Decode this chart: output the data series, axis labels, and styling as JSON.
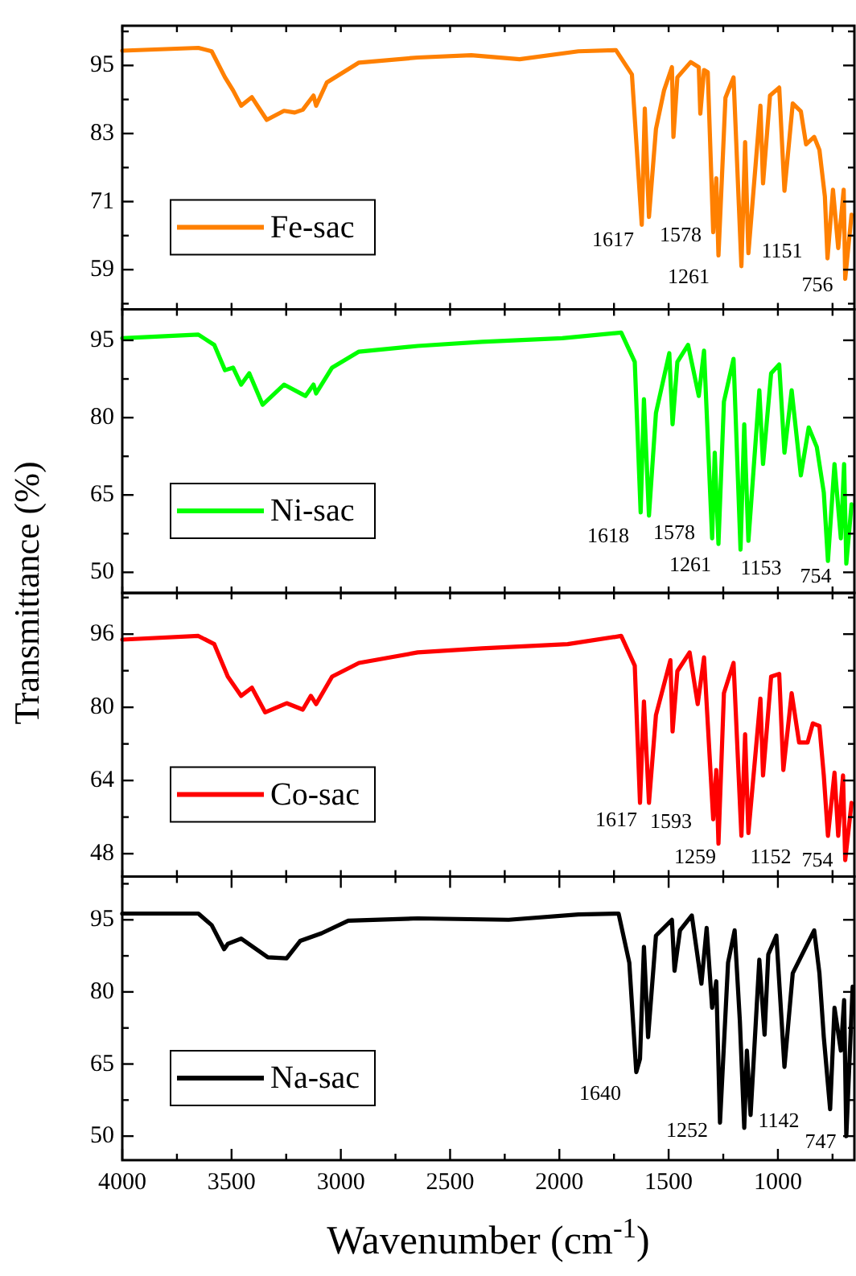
{
  "chart_data": [
    {
      "type": "line",
      "ylabel": "Transmittance (%)",
      "tick_labels": "y",
      "legend": "bottom left",
      "xlim": [
        4000,
        650
      ],
      "xticks": [
        {
          "value": 4000,
          "label": null
        },
        {
          "value": 3750,
          "label": null
        },
        {
          "value": 3500,
          "label": null
        },
        {
          "value": 3250,
          "label": null
        },
        {
          "value": 3000,
          "label": null
        },
        {
          "value": 2750,
          "label": null
        },
        {
          "value": 2500,
          "label": null
        },
        {
          "value": 2250,
          "label": null
        },
        {
          "value": 2000,
          "label": null
        },
        {
          "value": 1750,
          "label": null
        },
        {
          "value": 1500,
          "label": null
        },
        {
          "value": 1250,
          "label": null
        },
        {
          "value": 1000,
          "label": null
        },
        {
          "value": 750,
          "label": null
        }
      ],
      "ylim": [
        52,
        102
      ],
      "yticks": [
        {
          "value": 53,
          "label": null
        },
        59,
        {
          "value": 65,
          "label": null
        },
        71,
        {
          "value": 77,
          "label": null
        },
        83,
        {
          "value": 89,
          "label": null
        },
        95,
        {
          "value": 101,
          "label": null
        }
      ],
      "x": [
        4000,
        3652,
        3591,
        3530,
        3493,
        3456,
        3407,
        3339,
        3260,
        3211,
        3174,
        3125,
        3113,
        3064,
        2917,
        2648,
        2403,
        2182,
        1913,
        1741,
        1668,
        1623,
        1609,
        1590,
        1558,
        1521,
        1485,
        1478,
        1460,
        1399,
        1362,
        1355,
        1338,
        1321,
        1296,
        1282,
        1272,
        1240,
        1203,
        1167,
        1150,
        1135,
        1080,
        1068,
        1036,
        994,
        970,
        932,
        895,
        871,
        834,
        810,
        785,
        773,
        748,
        724,
        699,
        692,
        663
      ],
      "series": [
        {
          "name": "Fe-sac",
          "color": "#ff8000",
          "values": [
            97.6,
            98.1,
            97.5,
            92.9,
            90.6,
            87.9,
            89.4,
            85.4,
            87,
            86.7,
            87.2,
            89.7,
            87.9,
            92,
            95.5,
            96.4,
            96.8,
            96.1,
            97.5,
            97.7,
            93.4,
            66.9,
            87.4,
            68.3,
            83.8,
            90.6,
            94.7,
            82.4,
            92.9,
            95.6,
            94.7,
            86.5,
            94.2,
            93.8,
            65.6,
            75.1,
            61.5,
            89.3,
            92.9,
            59.6,
            81.5,
            61.9,
            87.9,
            74.2,
            89.7,
            91.1,
            72.9,
            88.3,
            86.9,
            81.1,
            82.4,
            80.1,
            71.9,
            61,
            73.1,
            62.8,
            73.1,
            57.4,
            68.7
          ]
        }
      ],
      "annotations": [
        "1617",
        "1578",
        "1261",
        "1151",
        "756"
      ]
    },
    {
      "type": "line",
      "tick_labels": "y",
      "legend": "bottom left",
      "xlim": [
        4000,
        650
      ],
      "xticks": [
        {
          "value": 4000,
          "label": null
        },
        {
          "value": 3750,
          "label": null
        },
        {
          "value": 3500,
          "label": null
        },
        {
          "value": 3250,
          "label": null
        },
        {
          "value": 3000,
          "label": null
        },
        {
          "value": 2750,
          "label": null
        },
        {
          "value": 2500,
          "label": null
        },
        {
          "value": 2250,
          "label": null
        },
        {
          "value": 2000,
          "label": null
        },
        {
          "value": 1750,
          "label": null
        },
        {
          "value": 1500,
          "label": null
        },
        {
          "value": 1250,
          "label": null
        },
        {
          "value": 1000,
          "label": null
        },
        {
          "value": 750,
          "label": null
        }
      ],
      "ylim": [
        46,
        101
      ],
      "yticks": [
        50,
        {
          "value": 57.5,
          "label": null
        },
        65,
        {
          "value": 72.5,
          "label": null
        },
        80,
        {
          "value": 87.5,
          "label": null
        },
        95
      ],
      "x": [
        4000,
        3652,
        3579,
        3530,
        3493,
        3456,
        3419,
        3358,
        3260,
        3162,
        3125,
        3113,
        3040,
        2917,
        2648,
        2354,
        1987,
        1717,
        1655,
        1628,
        1613,
        1590,
        1558,
        1497,
        1482,
        1460,
        1411,
        1362,
        1338,
        1301,
        1289,
        1272,
        1247,
        1203,
        1171,
        1154,
        1135,
        1085,
        1068,
        1031,
        994,
        970,
        937,
        895,
        859,
        822,
        790,
        771,
        741,
        712,
        697,
        687,
        663
      ],
      "series": [
        {
          "name": "Ni-sac",
          "color": "#00ff00",
          "values": [
            95.4,
            96.1,
            94.1,
            89.2,
            89.7,
            86.4,
            88.6,
            82.5,
            86.4,
            84.2,
            86.4,
            84.7,
            89.7,
            92.8,
            93.9,
            94.7,
            95.4,
            96.5,
            90.8,
            61.6,
            83.6,
            61,
            80.9,
            92.5,
            78.7,
            90.8,
            94.1,
            84.2,
            93,
            56.6,
            73.2,
            55.5,
            83.1,
            91.4,
            54.4,
            78.7,
            56.1,
            85.3,
            71,
            88.6,
            90.3,
            73.2,
            85.3,
            68.8,
            78.1,
            74.3,
            65.5,
            52.2,
            71,
            56.6,
            71,
            51.7,
            63.2
          ]
        }
      ],
      "annotations": [
        "1618",
        "1578",
        "1261",
        "1153",
        "754"
      ]
    },
    {
      "type": "line",
      "tick_labels": "y",
      "legend": "bottom left",
      "xlim": [
        4000,
        650
      ],
      "xticks": [
        {
          "value": 4000,
          "label": null
        },
        {
          "value": 3750,
          "label": null
        },
        {
          "value": 3500,
          "label": null
        },
        {
          "value": 3250,
          "label": null
        },
        {
          "value": 3000,
          "label": null
        },
        {
          "value": 2750,
          "label": null
        },
        {
          "value": 2500,
          "label": null
        },
        {
          "value": 2250,
          "label": null
        },
        {
          "value": 2000,
          "label": null
        },
        {
          "value": 1750,
          "label": null
        },
        {
          "value": 1500,
          "label": null
        },
        {
          "value": 1250,
          "label": null
        },
        {
          "value": 1000,
          "label": null
        },
        {
          "value": 750,
          "label": null
        }
      ],
      "ylim": [
        43,
        105
      ],
      "yticks": [
        48,
        {
          "value": 56,
          "label": null
        },
        64,
        {
          "value": 72,
          "label": null
        },
        80,
        {
          "value": 88,
          "label": null
        },
        96,
        {
          "value": 104,
          "label": null
        }
      ],
      "x": [
        4000,
        3652,
        3579,
        3517,
        3456,
        3407,
        3346,
        3248,
        3174,
        3137,
        3113,
        3040,
        2917,
        2648,
        2354,
        1962,
        1717,
        1655,
        1631,
        1613,
        1590,
        1558,
        1492,
        1482,
        1460,
        1404,
        1367,
        1338,
        1296,
        1282,
        1272,
        1247,
        1203,
        1167,
        1150,
        1135,
        1080,
        1068,
        1031,
        994,
        975,
        937,
        903,
        864,
        840,
        810,
        790,
        771,
        741,
        724,
        702,
        692,
        663
      ],
      "series": [
        {
          "name": "Co-sac",
          "color": "#ff0000",
          "values": [
            94.8,
            95.6,
            93.8,
            86.7,
            82.5,
            84.3,
            78.9,
            80.9,
            79.5,
            82.5,
            80.7,
            86.7,
            89.7,
            92,
            92.9,
            93.8,
            95.6,
            89.1,
            59.1,
            81.3,
            59.1,
            78.3,
            90.3,
            74.7,
            87.9,
            92,
            80.7,
            90.9,
            55.5,
            66.3,
            50.2,
            83.1,
            89.7,
            51.9,
            74.1,
            52.5,
            81.9,
            65.1,
            86.7,
            87.3,
            66.3,
            83.1,
            72.3,
            72.3,
            76.5,
            75.9,
            65.1,
            51.9,
            65.7,
            51.9,
            65.1,
            46.6,
            59.1
          ]
        }
      ],
      "annotations": [
        "1617",
        "1593",
        "1259",
        "1152",
        "754"
      ]
    },
    {
      "type": "line",
      "xlabel": "Wavenumber (cm$^{-1}$)",
      "legend": "bottom left",
      "xlim": [
        4000,
        650
      ],
      "xticks": [
        4000,
        {
          "value": 3750,
          "label": null
        },
        3500,
        {
          "value": 3250,
          "label": null
        },
        3000,
        {
          "value": 2750,
          "label": null
        },
        2500,
        {
          "value": 2250,
          "label": null
        },
        2000,
        {
          "value": 1750,
          "label": null
        },
        1500,
        {
          "value": 1250,
          "label": null
        },
        1000,
        {
          "value": 750,
          "label": null
        }
      ],
      "ylim": [
        45,
        104
      ],
      "yticks": [
        50,
        {
          "value": 57.5,
          "label": null
        },
        65,
        {
          "value": 72.5,
          "label": null
        },
        80,
        {
          "value": 87.5,
          "label": null
        },
        95,
        {
          "value": 102.5,
          "label": null
        }
      ],
      "x": [
        4000,
        3652,
        3591,
        3534,
        3517,
        3456,
        3334,
        3248,
        3186,
        3088,
        2966,
        2648,
        2232,
        1913,
        1729,
        1680,
        1648,
        1631,
        1613,
        1594,
        1558,
        1485,
        1473,
        1448,
        1394,
        1350,
        1326,
        1301,
        1282,
        1265,
        1228,
        1198,
        1174,
        1154,
        1142,
        1125,
        1085,
        1061,
        1044,
        1007,
        970,
        932,
        834,
        810,
        790,
        761,
        741,
        712,
        697,
        687,
        658
      ],
      "series": [
        {
          "name": "Na-sac",
          "color": "#000000",
          "values": [
            96.3,
            96.3,
            93.9,
            88.9,
            90,
            91.1,
            87.2,
            87,
            90.6,
            92.2,
            94.8,
            95.3,
            95,
            96.1,
            96.3,
            86.1,
            63.3,
            66.1,
            89.4,
            70.6,
            91.7,
            95,
            84.4,
            92.8,
            95.9,
            81.7,
            93.3,
            76.7,
            82.2,
            52.8,
            86.1,
            92.8,
            73.9,
            51.7,
            67.8,
            54.4,
            86.7,
            71.1,
            87.8,
            91.7,
            64.4,
            83.9,
            92.8,
            83.9,
            70.6,
            55.6,
            76.7,
            67.8,
            78.3,
            50,
            81.1
          ]
        }
      ],
      "annotations": [
        "1640",
        "1252",
        "1142",
        "747"
      ]
    }
  ]
}
